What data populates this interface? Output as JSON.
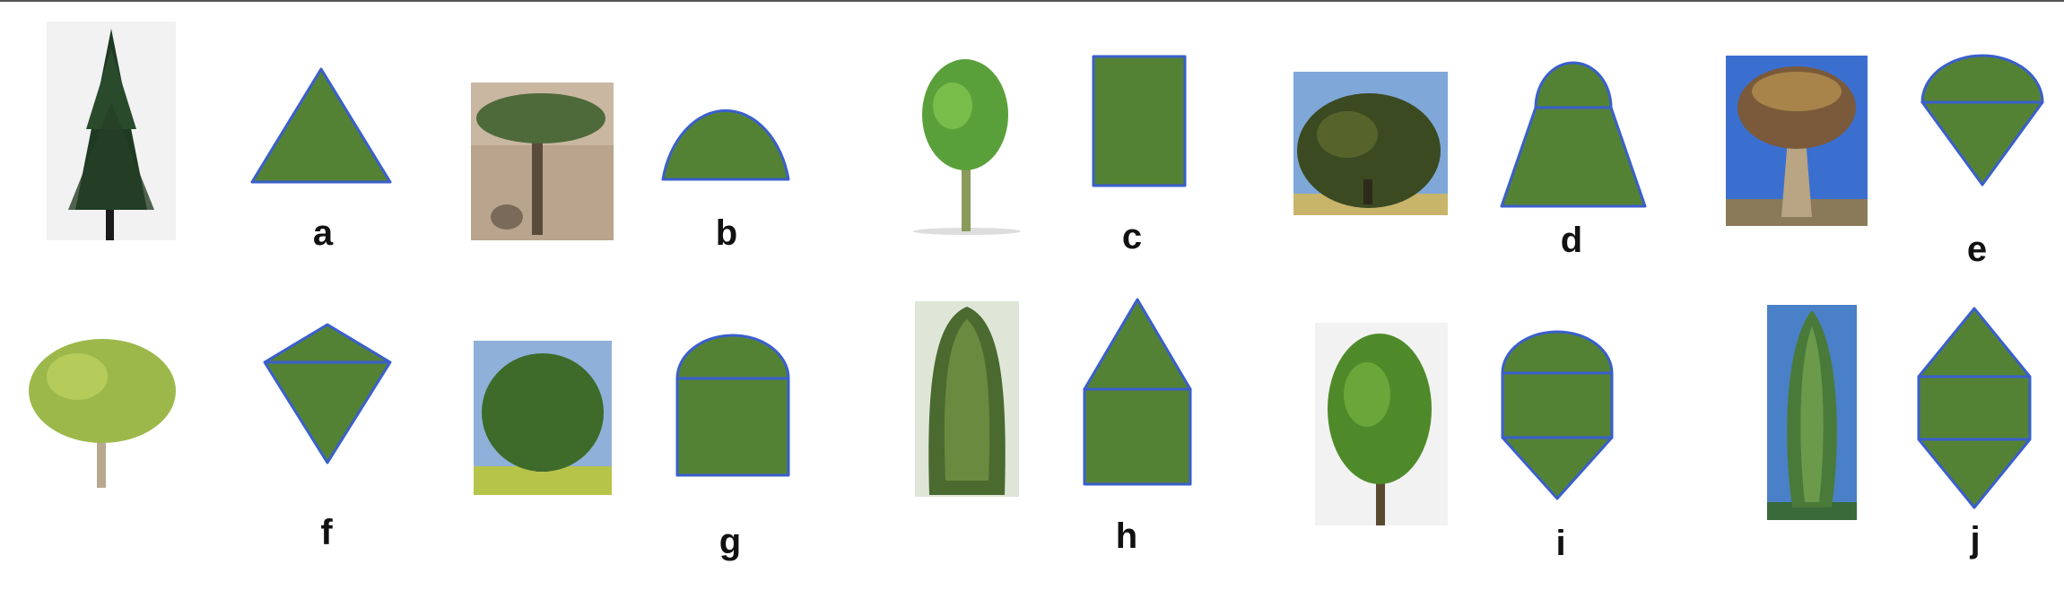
{
  "colors": {
    "shape_fill": "#548235",
    "shape_stroke": "#3a5fcd",
    "border": "#555555"
  },
  "items": [
    {
      "label": "a",
      "tree": "conifer-pyramid-tree",
      "shape": "triangle"
    },
    {
      "label": "b",
      "tree": "umbrella-dragon-tree",
      "shape": "half-circle"
    },
    {
      "label": "c",
      "tree": "rectangular-crown-tree",
      "shape": "rectangle"
    },
    {
      "label": "d",
      "tree": "spreading-cedar-tree",
      "shape": "trapezoid-with-dome"
    },
    {
      "label": "e",
      "tree": "quiver-tree",
      "shape": "dome-on-inverted-triangle"
    },
    {
      "label": "f",
      "tree": "broad-deciduous-tree",
      "shape": "kite"
    },
    {
      "label": "g",
      "tree": "round-oak-tree",
      "shape": "dome-on-rectangle"
    },
    {
      "label": "h",
      "tree": "columnar-conifer-tree",
      "shape": "triangle-on-rectangle"
    },
    {
      "label": "i",
      "tree": "oval-green-tree",
      "shape": "dome-rectangle-triangle"
    },
    {
      "label": "j",
      "tree": "poplar-tree",
      "shape": "hexagon-diamond"
    }
  ]
}
